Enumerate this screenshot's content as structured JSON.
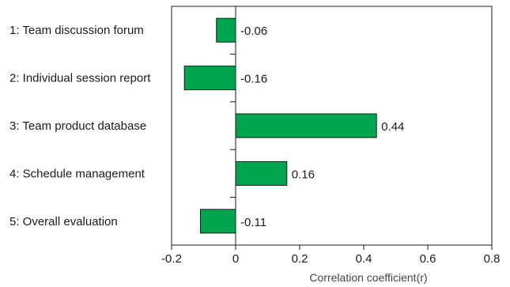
{
  "chart_data": {
    "type": "bar",
    "orientation": "horizontal",
    "categories": [
      "1: Team discussion forum",
      "2: Individual session report",
      "3: Team product database",
      "4: Schedule management",
      "5: Overall evaluation"
    ],
    "values": [
      -0.06,
      -0.16,
      0.44,
      0.16,
      -0.11
    ],
    "data_labels": [
      "-0.06",
      "-0.16",
      "0.44",
      "0.16",
      "-0.11"
    ],
    "xlabel": "Correlation coefficient(r)",
    "ylabel": "",
    "xlim": [
      -0.2,
      0.8
    ],
    "xticks": [
      -0.2,
      0,
      0.2,
      0.4,
      0.6,
      0.8
    ],
    "xtick_labels": [
      "-0.2",
      "0",
      "0.2",
      "0.4",
      "0.6",
      "0.8"
    ],
    "grid": false,
    "legend": "none",
    "bar_color": "#00a550",
    "bar_stroke": "#1a1a1a"
  }
}
